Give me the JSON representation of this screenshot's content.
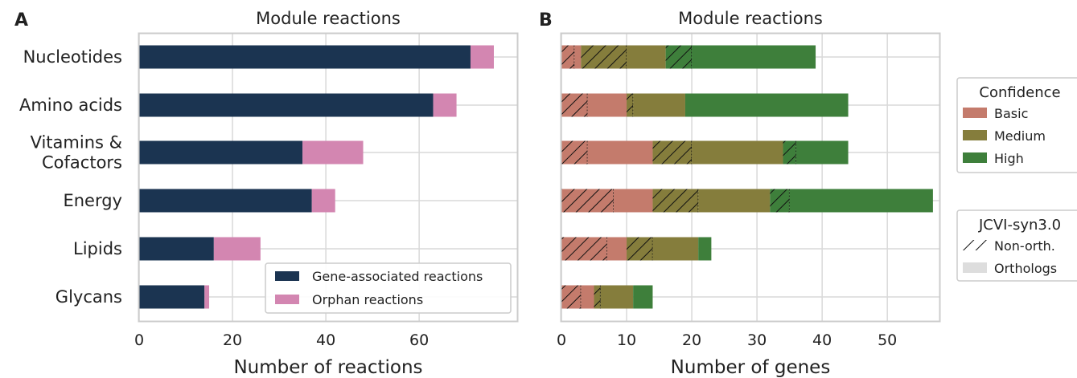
{
  "chart_data": [
    {
      "panel": "A",
      "type": "bar",
      "orientation": "horizontal",
      "stacked": true,
      "title": "Module reactions",
      "xlabel": "Number of reactions",
      "ylabel": "",
      "xlim": [
        0,
        81
      ],
      "xticks": [
        "0",
        "20",
        "40",
        "60"
      ],
      "grid": true,
      "categories": [
        "Nucleotides",
        "Amino acids",
        "Vitamins &\nCofactors",
        "Energy",
        "Lipids",
        "Glycans"
      ],
      "series": [
        {
          "name": "Gene-associated reactions",
          "color": "#1b3451",
          "values": [
            71,
            63,
            35,
            37,
            16,
            14
          ]
        },
        {
          "name": "Orphan reactions",
          "color": "#d386b1",
          "values": [
            5,
            5,
            13,
            5,
            10,
            1
          ]
        }
      ],
      "legend": {
        "position": "lower-right",
        "entries": [
          "Gene-associated reactions",
          "Orphan reactions"
        ]
      }
    },
    {
      "panel": "B",
      "type": "bar",
      "orientation": "horizontal",
      "stacked": true,
      "title": "Module reactions",
      "xlabel": "Number of genes",
      "ylabel": "",
      "xlim": [
        0,
        58
      ],
      "xticks": [
        "0",
        "10",
        "20",
        "30",
        "40",
        "50"
      ],
      "grid": true,
      "categories": [
        "Nucleotides",
        "Amino acids",
        "Vitamins &\nCofactors",
        "Energy",
        "Lipids",
        "Glycans"
      ],
      "segments": [
        [
          {
            "conf": "Basic",
            "type": "Non-orth.",
            "v": 2
          },
          {
            "conf": "Basic",
            "type": "Orthologs",
            "v": 1
          },
          {
            "conf": "Medium",
            "type": "Non-orth.",
            "v": 7
          },
          {
            "conf": "Medium",
            "type": "Orthologs",
            "v": 6
          },
          {
            "conf": "High",
            "type": "Non-orth.",
            "v": 4
          },
          {
            "conf": "High",
            "type": "Orthologs",
            "v": 19
          }
        ],
        [
          {
            "conf": "Basic",
            "type": "Non-orth.",
            "v": 4
          },
          {
            "conf": "Basic",
            "type": "Orthologs",
            "v": 6
          },
          {
            "conf": "Medium",
            "type": "Non-orth.",
            "v": 1
          },
          {
            "conf": "Medium",
            "type": "Orthologs",
            "v": 8
          },
          {
            "conf": "High",
            "type": "Non-orth.",
            "v": 0
          },
          {
            "conf": "High",
            "type": "Orthologs",
            "v": 25
          }
        ],
        [
          {
            "conf": "Basic",
            "type": "Non-orth.",
            "v": 4
          },
          {
            "conf": "Basic",
            "type": "Orthologs",
            "v": 10
          },
          {
            "conf": "Medium",
            "type": "Non-orth.",
            "v": 6
          },
          {
            "conf": "Medium",
            "type": "Orthologs",
            "v": 14
          },
          {
            "conf": "High",
            "type": "Non-orth.",
            "v": 2
          },
          {
            "conf": "High",
            "type": "Orthologs",
            "v": 8
          }
        ],
        [
          {
            "conf": "Basic",
            "type": "Non-orth.",
            "v": 8
          },
          {
            "conf": "Basic",
            "type": "Orthologs",
            "v": 6
          },
          {
            "conf": "Medium",
            "type": "Non-orth.",
            "v": 7
          },
          {
            "conf": "Medium",
            "type": "Orthologs",
            "v": 11
          },
          {
            "conf": "High",
            "type": "Non-orth.",
            "v": 3
          },
          {
            "conf": "High",
            "type": "Orthologs",
            "v": 22
          }
        ],
        [
          {
            "conf": "Basic",
            "type": "Non-orth.",
            "v": 7
          },
          {
            "conf": "Basic",
            "type": "Orthologs",
            "v": 3
          },
          {
            "conf": "Medium",
            "type": "Non-orth.",
            "v": 4
          },
          {
            "conf": "Medium",
            "type": "Orthologs",
            "v": 7
          },
          {
            "conf": "High",
            "type": "Non-orth.",
            "v": 0
          },
          {
            "conf": "High",
            "type": "Orthologs",
            "v": 2
          }
        ],
        [
          {
            "conf": "Basic",
            "type": "Non-orth.",
            "v": 3
          },
          {
            "conf": "Basic",
            "type": "Orthologs",
            "v": 2
          },
          {
            "conf": "Medium",
            "type": "Non-orth.",
            "v": 1
          },
          {
            "conf": "Medium",
            "type": "Orthologs",
            "v": 5
          },
          {
            "conf": "High",
            "type": "Non-orth.",
            "v": 0
          },
          {
            "conf": "High",
            "type": "Orthologs",
            "v": 3
          }
        ]
      ],
      "colors": {
        "Basic": "#c47b6c",
        "Medium": "#857d3c",
        "High": "#3e7f3b"
      },
      "legends": [
        {
          "title": "Confidence",
          "position": "right",
          "entries": [
            "Basic",
            "Medium",
            "High"
          ]
        },
        {
          "title": "JCVI-syn3.0",
          "position": "right",
          "entries": [
            "Non-orth.",
            "Orthologs"
          ]
        }
      ]
    }
  ]
}
